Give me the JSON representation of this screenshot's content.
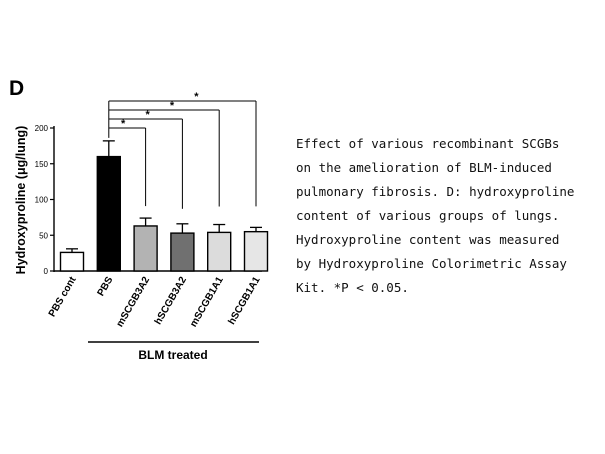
{
  "panel_label": "D",
  "caption": [
    "Effect of various recombinant SCGBs",
    "on the amelioration of BLM-induced",
    "pulmonary fibrosis. D: hydroxyproline",
    "content of various groups of lungs.",
    "Hydroxyproline content was measured",
    "by Hydroxyproline Colorimetric Assay",
    "Kit. *P < 0.05."
  ],
  "chart_data": {
    "type": "bar",
    "ylabel": "Hydroxyproline (μg/lung)",
    "group_label": "BLM treated",
    "ylim": [
      0,
      200
    ],
    "yticks": [
      "0",
      "50",
      "100",
      "150",
      "200"
    ],
    "categories": [
      "PBS cont",
      "PBS",
      "mSCGB3A2",
      "hSCGB3A2",
      "mSCGB1A1",
      "hSCGB1A1"
    ],
    "values": [
      26,
      160,
      63,
      53,
      54,
      55
    ],
    "errors": [
      5,
      22,
      11,
      13,
      11,
      6
    ],
    "bar_colors": [
      "#ffffff",
      "#000000",
      "#b3b3b3",
      "#707070",
      "#dcdcdc",
      "#e6e6e6"
    ],
    "significance": [
      {
        "from": "PBS",
        "to": "mSCGB3A2",
        "label": "*"
      },
      {
        "from": "PBS",
        "to": "hSCGB3A2",
        "label": "*"
      },
      {
        "from": "PBS",
        "to": "mSCGB1A1",
        "label": "*"
      },
      {
        "from": "PBS",
        "to": "hSCGB1A1",
        "label": "*"
      }
    ]
  }
}
